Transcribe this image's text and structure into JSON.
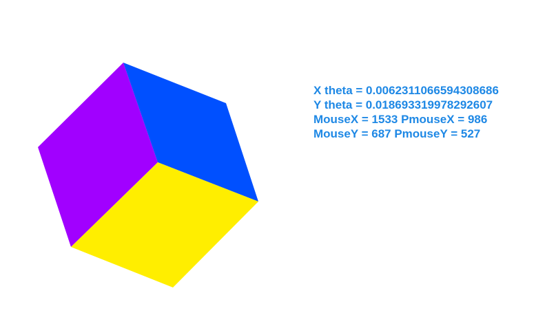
{
  "colors": {
    "background": "#ffffff",
    "face_left": "#a100ff",
    "face_right": "#0050ff",
    "face_bottom": "#ffee00",
    "text": "#1e88e5"
  },
  "readout": {
    "x_theta": "X theta = 0.006231106659430868​6",
    "y_theta": "Y theta = 0.018693319978292607",
    "mouse_x": "MouseX = 1533 PmouseX = 986",
    "mouse_y": "MouseY = 687 PmouseY = 527"
  }
}
